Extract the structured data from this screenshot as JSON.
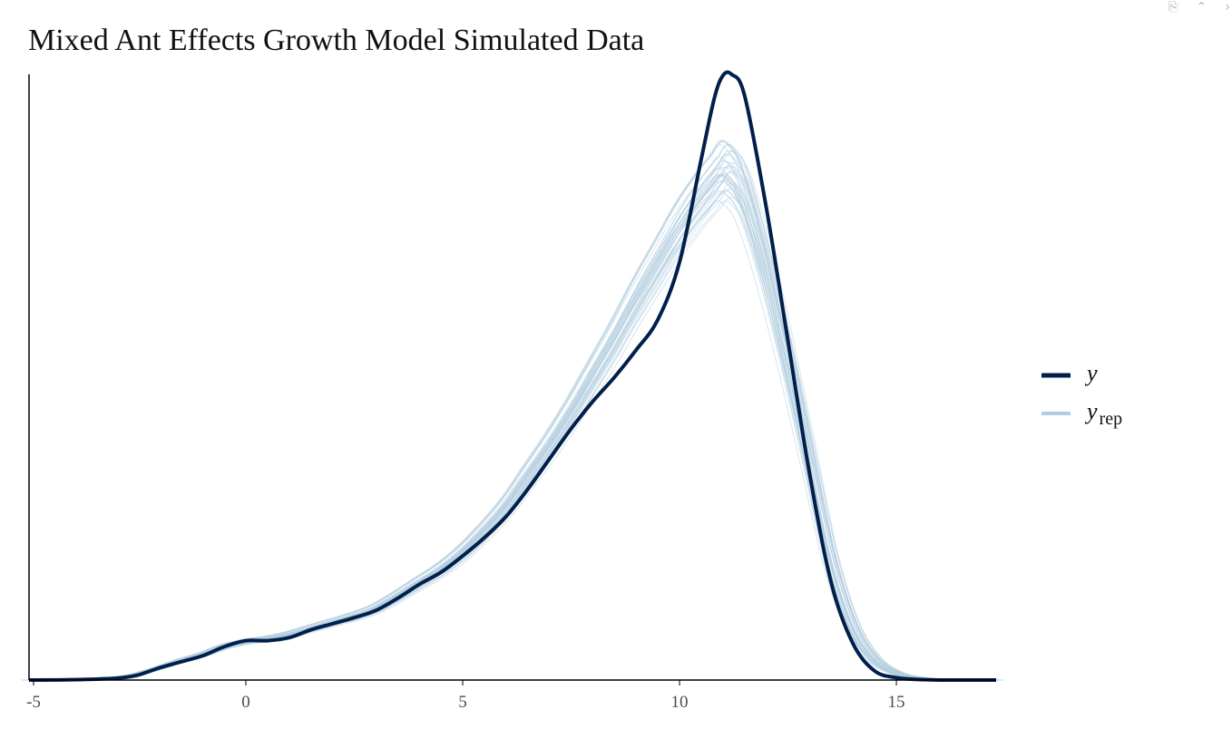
{
  "window": {
    "icons": {
      "export": "export-icon",
      "collapse": "double-chevron-up-icon",
      "close": "close-icon"
    }
  },
  "chart_data": {
    "type": "line",
    "title": "Mixed Ant Effects Growth Model Simulated Data",
    "xlabel": "",
    "ylabel": "",
    "xlim": [
      -5,
      17.3
    ],
    "ylim": [
      0,
      1.0
    ],
    "x_ticks": [
      -5,
      0,
      5,
      10,
      15
    ],
    "x_tick_labels": [
      "-5",
      "0",
      "5",
      "10",
      "15"
    ],
    "y_ticks_shown": false,
    "grid": false,
    "legend": {
      "position": "right",
      "entries": [
        {
          "label": "y",
          "subscript": "",
          "color": "#011f4b"
        },
        {
          "label": "y",
          "subscript": "rep",
          "color": "#b3cde0"
        }
      ]
    },
    "colors": {
      "y": "#011f4b",
      "y_rep": "#b3cde0"
    },
    "y_rep_draws": 40,
    "series": [
      {
        "name": "y",
        "x": [
          -5,
          -4,
          -3,
          -2.5,
          -2,
          -1.5,
          -1,
          -0.5,
          0,
          0.5,
          1,
          1.5,
          2,
          2.5,
          3,
          3.5,
          4,
          4.5,
          5,
          5.5,
          6,
          6.5,
          7,
          7.5,
          8,
          8.5,
          9,
          9.5,
          10,
          10.5,
          10.8,
          11,
          11.2,
          11.5,
          12,
          12.5,
          13,
          13.5,
          14,
          14.5,
          15,
          15.5,
          16,
          17.3
        ],
        "y": [
          0,
          0.0005,
          0.003,
          0.008,
          0.02,
          0.03,
          0.04,
          0.055,
          0.065,
          0.065,
          0.07,
          0.083,
          0.093,
          0.103,
          0.115,
          0.135,
          0.158,
          0.178,
          0.205,
          0.235,
          0.27,
          0.315,
          0.365,
          0.415,
          0.46,
          0.5,
          0.545,
          0.595,
          0.69,
          0.86,
          0.96,
          0.998,
          1.0,
          0.965,
          0.78,
          0.56,
          0.34,
          0.16,
          0.06,
          0.015,
          0.004,
          0.001,
          0,
          0
        ]
      },
      {
        "name": "y_rep",
        "x": [
          -5,
          -4,
          -3,
          -2.5,
          -2,
          -1.5,
          -1,
          -0.5,
          0,
          0.5,
          1,
          1.5,
          2,
          2.5,
          3,
          3.5,
          4,
          4.5,
          5,
          5.5,
          6,
          6.5,
          7,
          7.5,
          8,
          8.5,
          9,
          9.5,
          10,
          10.5,
          10.8,
          11,
          11.2,
          11.5,
          12,
          12.5,
          13,
          13.5,
          14,
          14.5,
          15,
          15.5,
          16,
          17.3
        ],
        "y": [
          0,
          0.0005,
          0.004,
          0.01,
          0.02,
          0.032,
          0.042,
          0.055,
          0.063,
          0.068,
          0.075,
          0.085,
          0.095,
          0.105,
          0.118,
          0.138,
          0.16,
          0.182,
          0.21,
          0.245,
          0.285,
          0.335,
          0.385,
          0.44,
          0.5,
          0.56,
          0.625,
          0.685,
          0.745,
          0.795,
          0.82,
          0.84,
          0.835,
          0.8,
          0.68,
          0.53,
          0.365,
          0.2,
          0.09,
          0.035,
          0.012,
          0.004,
          0.001,
          0
        ]
      }
    ]
  }
}
